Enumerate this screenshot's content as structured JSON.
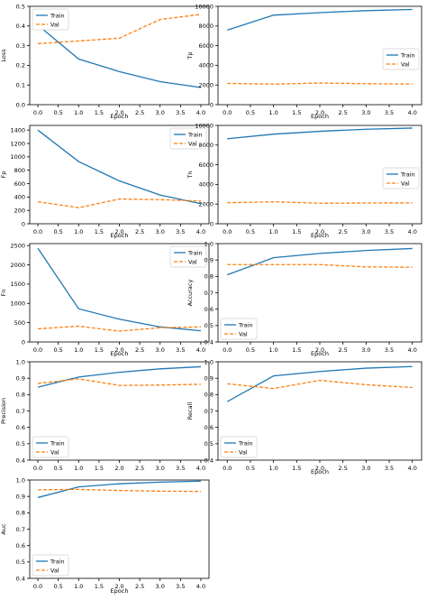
{
  "colors": {
    "train": "#1f77b4",
    "val": "#ff7f0e"
  },
  "chart_data": [
    {
      "type": "line",
      "x": [
        0,
        1,
        2,
        3,
        4
      ],
      "xlabel": "Epoch",
      "ylabel": "Loss",
      "xticks": [
        "0.0",
        "0.5",
        "1.0",
        "1.5",
        "2.0",
        "2.5",
        "3.0",
        "3.5",
        "4.0"
      ],
      "yticks": [
        "0.0",
        "0.1",
        "0.2",
        "0.3",
        "0.4",
        "0.5"
      ],
      "ylim": [
        0,
        0.5
      ],
      "legend": "top-left",
      "series": [
        {
          "name": "Train",
          "values": [
            0.404,
            0.232,
            0.168,
            0.117,
            0.087
          ]
        },
        {
          "name": "Val",
          "values": [
            0.31,
            0.324,
            0.338,
            0.433,
            0.459
          ]
        }
      ]
    },
    {
      "type": "line",
      "x": [
        0,
        1,
        2,
        3,
        4
      ],
      "xlabel": "Epoch",
      "ylabel": "Tp",
      "xticks": [
        "0.0",
        "0.5",
        "1.0",
        "1.5",
        "2.0",
        "2.5",
        "3.0",
        "3.5",
        "4.0"
      ],
      "yticks": [
        "0",
        "2000",
        "4000",
        "6000",
        "8000",
        "10000"
      ],
      "ylim": [
        0,
        10000
      ],
      "legend": "center-right",
      "series": [
        {
          "name": "Train",
          "values": [
            7580,
            9100,
            9360,
            9560,
            9680
          ]
        },
        {
          "name": "Val",
          "values": [
            2160,
            2090,
            2200,
            2130,
            2100
          ]
        }
      ]
    },
    {
      "type": "line",
      "x": [
        0,
        1,
        2,
        3,
        4
      ],
      "xlabel": "Epoch",
      "ylabel": "Fp",
      "xticks": [
        "0.0",
        "0.5",
        "1.0",
        "1.5",
        "2.0",
        "2.5",
        "3.0",
        "3.5",
        "4.0"
      ],
      "yticks": [
        "0",
        "200",
        "400",
        "600",
        "800",
        "1000",
        "1200",
        "1400"
      ],
      "ylim": [
        0,
        1470
      ],
      "legend": "top-right",
      "series": [
        {
          "name": "Train",
          "values": [
            1400,
            930,
            640,
            430,
            300
          ]
        },
        {
          "name": "Val",
          "values": [
            330,
            240,
            370,
            360,
            340
          ]
        }
      ]
    },
    {
      "type": "line",
      "x": [
        0,
        1,
        2,
        3,
        4
      ],
      "xlabel": "Epoch",
      "ylabel": "Tn",
      "xticks": [
        "0.0",
        "0.5",
        "1.0",
        "1.5",
        "2.0",
        "2.5",
        "3.0",
        "3.5",
        "4.0"
      ],
      "yticks": [
        "0",
        "2000",
        "4000",
        "6000",
        "8000",
        "10000"
      ],
      "ylim": [
        0,
        10000
      ],
      "legend": "center-right",
      "series": [
        {
          "name": "Train",
          "values": [
            8640,
            9110,
            9400,
            9610,
            9730
          ]
        },
        {
          "name": "Val",
          "values": [
            2140,
            2230,
            2090,
            2110,
            2120
          ]
        }
      ]
    },
    {
      "type": "line",
      "x": [
        0,
        1,
        2,
        3,
        4
      ],
      "xlabel": "Epoch",
      "ylabel": "Fn",
      "xticks": [
        "0.0",
        "0.5",
        "1.0",
        "1.5",
        "2.0",
        "2.5",
        "3.0",
        "3.5",
        "4.0"
      ],
      "yticks": [
        "0",
        "500",
        "1000",
        "1500",
        "2000",
        "2500"
      ],
      "ylim": [
        0,
        2550
      ],
      "legend": "top-right",
      "series": [
        {
          "name": "Train",
          "values": [
            2430,
            860,
            590,
            390,
            290
          ]
        },
        {
          "name": "Val",
          "values": [
            340,
            410,
            280,
            370,
            390
          ]
        }
      ]
    },
    {
      "type": "line",
      "x": [
        0,
        1,
        2,
        3,
        4
      ],
      "xlabel": "Epoch",
      "ylabel": "Accuracy",
      "xticks": [
        "0.0",
        "0.5",
        "1.0",
        "1.5",
        "2.0",
        "2.5",
        "3.0",
        "3.5",
        "4.0"
      ],
      "yticks": [
        "0.4",
        "0.5",
        "0.6",
        "0.7",
        "0.8",
        "0.9",
        "1.0"
      ],
      "ylim": [
        0.4,
        1.0
      ],
      "legend": "bottom-left",
      "series": [
        {
          "name": "Train",
          "values": [
            0.81,
            0.914,
            0.94,
            0.958,
            0.97
          ]
        },
        {
          "name": "Val",
          "values": [
            0.872,
            0.872,
            0.872,
            0.858,
            0.856
          ]
        }
      ]
    },
    {
      "type": "line",
      "x": [
        0,
        1,
        2,
        3,
        4
      ],
      "xlabel": "",
      "ylabel": "Precision",
      "xticks": [
        "0.0",
        "0.5",
        "1.0",
        "1.5",
        "2.0",
        "2.5",
        "3.0",
        "3.5",
        "4.0"
      ],
      "yticks": [
        "0.4",
        "0.5",
        "0.6",
        "0.7",
        "0.8",
        "0.9",
        "1.0"
      ],
      "ylim": [
        0.4,
        1.0
      ],
      "legend": "bottom-left",
      "series": [
        {
          "name": "Train",
          "values": [
            0.845,
            0.907,
            0.936,
            0.957,
            0.97
          ]
        },
        {
          "name": "Val",
          "values": [
            0.868,
            0.896,
            0.856,
            0.858,
            0.863
          ]
        }
      ]
    },
    {
      "type": "line",
      "x": [
        0,
        1,
        2,
        3,
        4
      ],
      "xlabel": "Epoch",
      "ylabel": "Recall",
      "xticks": [
        "0.0",
        "0.5",
        "1.0",
        "1.5",
        "2.0",
        "2.5",
        "3.0",
        "3.5",
        "4.0"
      ],
      "yticks": [
        "0.4",
        "0.5",
        "0.6",
        "0.7",
        "0.8",
        "0.9",
        "1.0"
      ],
      "ylim": [
        0.4,
        1.0
      ],
      "legend": "bottom-left",
      "series": [
        {
          "name": "Train",
          "values": [
            0.757,
            0.914,
            0.941,
            0.961,
            0.971
          ]
        },
        {
          "name": "Val",
          "values": [
            0.866,
            0.837,
            0.887,
            0.86,
            0.843
          ]
        }
      ]
    },
    {
      "type": "line",
      "x": [
        0,
        1,
        2,
        3,
        4
      ],
      "xlabel": "Epoch",
      "ylabel": "Auc",
      "xticks": [
        "0.0",
        "0.5",
        "1.0",
        "1.5",
        "2.0",
        "2.5",
        "3.0",
        "3.5",
        "4.0"
      ],
      "yticks": [
        "0.4",
        "0.5",
        "0.6",
        "0.7",
        "0.8",
        "0.9",
        "1.0"
      ],
      "ylim": [
        0.4,
        1.0
      ],
      "legend": "bottom-left",
      "series": [
        {
          "name": "Train",
          "values": [
            0.893,
            0.958,
            0.977,
            0.987,
            0.993
          ]
        },
        {
          "name": "Val",
          "values": [
            0.94,
            0.943,
            0.936,
            0.932,
            0.93
          ]
        }
      ]
    }
  ]
}
